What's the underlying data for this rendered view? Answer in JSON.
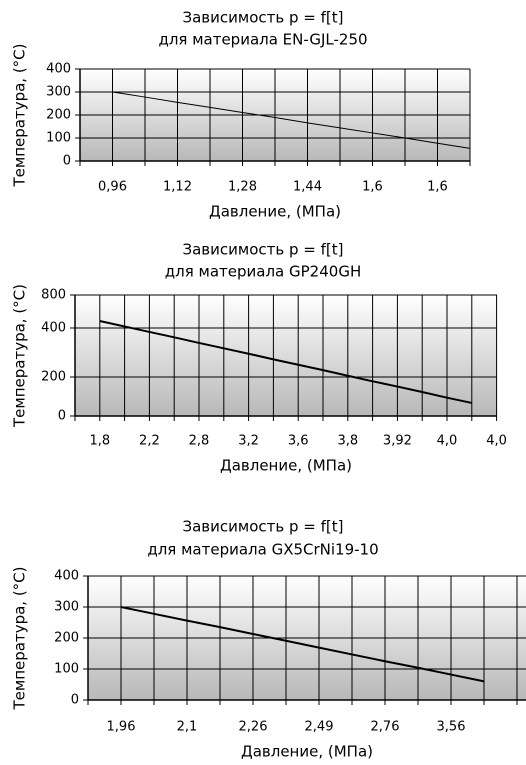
{
  "chart_data": [
    {
      "type": "line",
      "title": "Зависимость p = f[t]",
      "subtitle": "для материала EN-GJL-250",
      "x_label": "Давление, (МПа)",
      "y_label": "Температура, (°C)",
      "categories": [
        "0,96",
        null,
        "1,12",
        null,
        "1,28",
        null,
        "1,44",
        null,
        "1,6",
        null,
        "1,6",
        null
      ],
      "series": [
        {
          "color": "#000000",
          "values": [
            300,
            278,
            255,
            233,
            211,
            189,
            166,
            144,
            122,
            100,
            77,
            55
          ]
        }
      ],
      "ylim": [
        0,
        400
      ],
      "yticks": [
        0,
        100,
        200,
        300,
        400
      ],
      "grid": true
    },
    {
      "type": "line",
      "title": "Зависимость p = f[t]",
      "subtitle": "для материала GP240GH",
      "x_label": "Давление, (МПа)",
      "y_label": "Температура, (°C)",
      "categories": [
        "1,8",
        null,
        "2,2",
        null,
        "2,8",
        null,
        "3,2",
        null,
        "3,6",
        null,
        "3,8",
        null,
        "3,92",
        null,
        "4,0",
        null,
        "4,0"
      ],
      "series": [
        {
          "color": "#000000",
          "values": [
            485,
            418,
            384,
            362,
            339,
            317,
            295,
            272,
            250,
            228,
            205,
            178,
            151,
            123,
            94,
            67,
            null
          ]
        }
      ],
      "ylim": [
        0,
        800
      ],
      "yticks": [
        0,
        200,
        400,
        800
      ],
      "grid": true
    },
    {
      "type": "line",
      "title": "Зависимость p = f[t]",
      "subtitle": "для материала GX5CrNi19-10",
      "x_label": "Давление, (МПа)",
      "y_label": "Температура, (°C)",
      "categories": [
        "1,96",
        null,
        "2,1",
        null,
        "2,26",
        null,
        "2,49",
        null,
        "2,76",
        null,
        "3,56",
        null,
        null
      ],
      "series": [
        {
          "color": "#000000",
          "values": [
            300,
            278,
            256,
            235,
            213,
            191,
            169,
            147,
            125,
            104,
            82,
            60,
            null
          ]
        }
      ],
      "ylim": [
        0,
        400
      ],
      "yticks": [
        0,
        100,
        200,
        300,
        400
      ],
      "grid": true
    }
  ]
}
